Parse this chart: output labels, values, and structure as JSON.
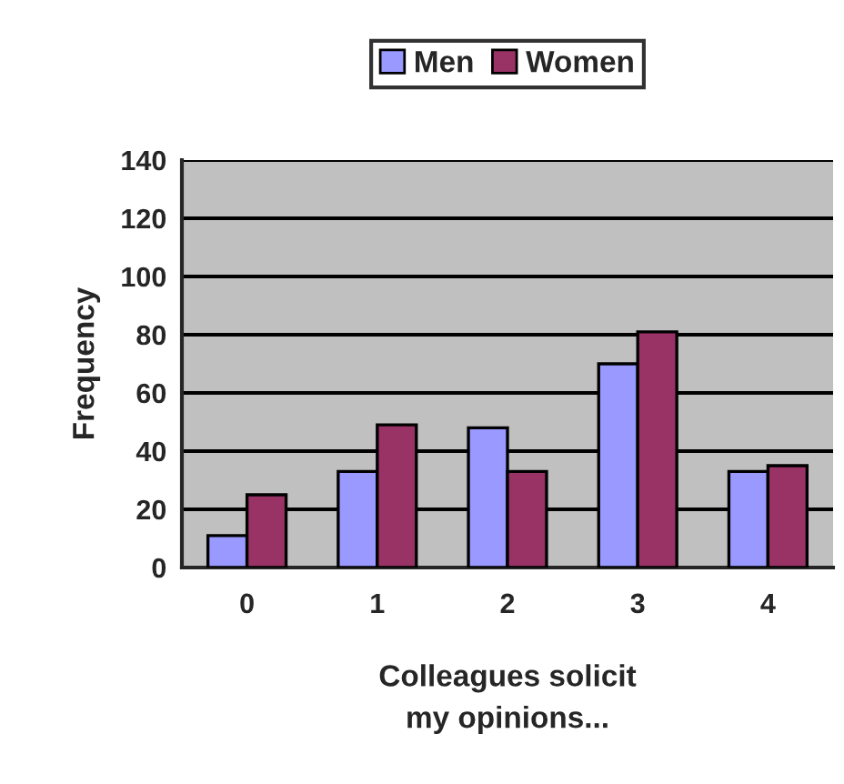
{
  "chart_data": {
    "type": "bar",
    "xlabel": "Colleagues solicit\nmy opinions...",
    "ylabel": "Frequency",
    "categories": [
      "0",
      "1",
      "2",
      "3",
      "4"
    ],
    "series": [
      {
        "name": "Men",
        "color": "#9999ff",
        "values": [
          11,
          33,
          48,
          70,
          33
        ]
      },
      {
        "name": "Women",
        "color": "#993366",
        "values": [
          25,
          49,
          33,
          81,
          35
        ]
      }
    ],
    "ylim": [
      0,
      140
    ],
    "yticks": [
      0,
      20,
      40,
      60,
      80,
      100,
      120,
      140
    ],
    "grid": "y",
    "legend": "top"
  }
}
